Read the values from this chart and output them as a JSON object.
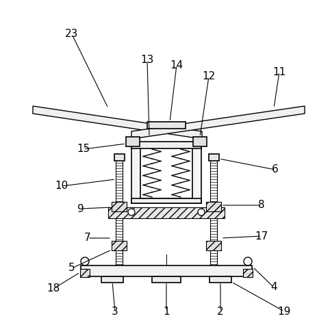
{
  "bg_color": "#ffffff",
  "line_color": "#000000",
  "figure_size": [
    4.82,
    4.75
  ],
  "dpi": 100
}
